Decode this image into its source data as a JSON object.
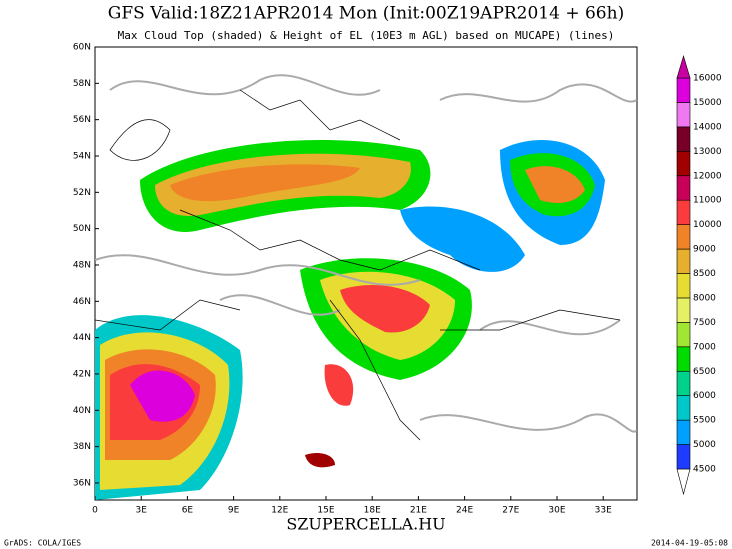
{
  "header": {
    "title": "GFS Valid:18Z21APR2014 Mon (Init:00Z19APR2014 + 66h)",
    "subtitle": "Max Cloud Top (shaded) & Height of EL (10E3 m AGL) based on MUCAPE) (lines)"
  },
  "map": {
    "lat_labels": [
      "60N",
      "58N",
      "56N",
      "54N",
      "52N",
      "50N",
      "48N",
      "46N",
      "44N",
      "42N",
      "40N",
      "38N",
      "36N"
    ],
    "lon_labels": [
      "0",
      "3E",
      "6E",
      "9E",
      "12E",
      "15E",
      "18E",
      "21E",
      "24E",
      "27E",
      "30E",
      "33E"
    ]
  },
  "colorbar": {
    "levels": [
      4500,
      5000,
      5500,
      6000,
      6500,
      7000,
      7500,
      8000,
      8500,
      9000,
      10000,
      11000,
      12000,
      13000,
      14000,
      15000,
      16000
    ],
    "colors": [
      "#ffffff",
      "#1e3cff",
      "#00a0ff",
      "#00c8c8",
      "#00d28c",
      "#00dc00",
      "#a0e632",
      "#e6f064",
      "#e6dc32",
      "#e6af2d",
      "#f08228",
      "#fa3c3c",
      "#c8005a",
      "#a00000",
      "#780028",
      "#f078f0",
      "#dc00dc",
      "#c800a0"
    ]
  },
  "footer": {
    "site": "SZUPERCELLA.HU",
    "left": "GrADS: COLA/IGES",
    "right": "2014-04-19-05:08"
  }
}
